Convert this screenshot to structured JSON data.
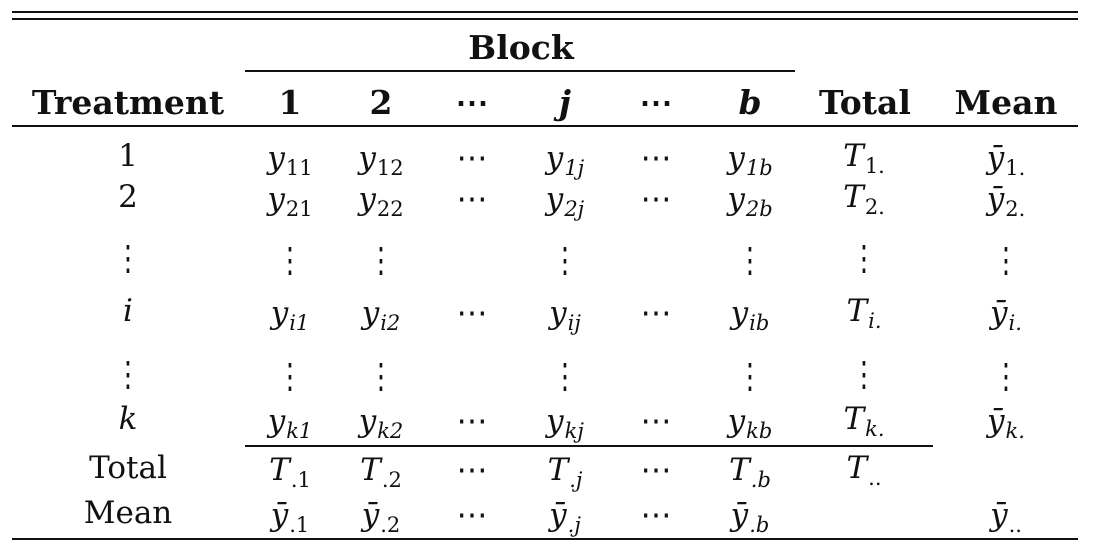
{
  "header": {
    "block_label": "Block",
    "treatment_label": "Treatment",
    "block_cols": [
      "1",
      "2",
      "⋯",
      "j",
      "⋯",
      "b"
    ],
    "total_label": "Total",
    "mean_label": "Mean"
  },
  "rows": [
    {
      "treatment": "1",
      "cells": [
        {
          "v": "y",
          "s": "11"
        },
        {
          "v": "y",
          "s": "12"
        },
        {
          "v": "⋯",
          "s": ""
        },
        {
          "v": "y",
          "s": "1j"
        },
        {
          "v": "⋯",
          "s": ""
        },
        {
          "v": "y",
          "s": "1b"
        }
      ],
      "total": {
        "v": "T",
        "s": "1."
      },
      "mean": {
        "v": "ȳ",
        "s": "1."
      }
    },
    {
      "treatment": "2",
      "cells": [
        {
          "v": "y",
          "s": "21"
        },
        {
          "v": "y",
          "s": "22"
        },
        {
          "v": "⋯",
          "s": ""
        },
        {
          "v": "y",
          "s": "2j"
        },
        {
          "v": "⋯",
          "s": ""
        },
        {
          "v": "y",
          "s": "2b"
        }
      ],
      "total": {
        "v": "T",
        "s": "2."
      },
      "mean": {
        "v": "ȳ",
        "s": "2."
      }
    },
    {
      "treatment": "⋮",
      "cells": [
        {
          "v": "⋮",
          "s": ""
        },
        {
          "v": "⋮",
          "s": ""
        },
        {
          "v": "",
          "s": ""
        },
        {
          "v": "⋮",
          "s": ""
        },
        {
          "v": "",
          "s": ""
        },
        {
          "v": "⋮",
          "s": ""
        }
      ],
      "total": {
        "v": "⋮",
        "s": ""
      },
      "mean": {
        "v": "⋮",
        "s": ""
      }
    },
    {
      "treatment": "i",
      "cells": [
        {
          "v": "y",
          "s": "i1"
        },
        {
          "v": "y",
          "s": "i2"
        },
        {
          "v": "⋯",
          "s": ""
        },
        {
          "v": "y",
          "s": "ij"
        },
        {
          "v": "⋯",
          "s": ""
        },
        {
          "v": "y",
          "s": "ib"
        }
      ],
      "total": {
        "v": "T",
        "s": "i."
      },
      "mean": {
        "v": "ȳ",
        "s": "i."
      }
    },
    {
      "treatment": "⋮",
      "cells": [
        {
          "v": "⋮",
          "s": ""
        },
        {
          "v": "⋮",
          "s": ""
        },
        {
          "v": "",
          "s": ""
        },
        {
          "v": "⋮",
          "s": ""
        },
        {
          "v": "",
          "s": ""
        },
        {
          "v": "⋮",
          "s": ""
        }
      ],
      "total": {
        "v": "⋮",
        "s": ""
      },
      "mean": {
        "v": "⋮",
        "s": ""
      }
    },
    {
      "treatment": "k",
      "cells": [
        {
          "v": "y",
          "s": "k1"
        },
        {
          "v": "y",
          "s": "k2"
        },
        {
          "v": "⋯",
          "s": ""
        },
        {
          "v": "y",
          "s": "kj"
        },
        {
          "v": "⋯",
          "s": ""
        },
        {
          "v": "y",
          "s": "kb"
        }
      ],
      "total": {
        "v": "T",
        "s": "k."
      },
      "mean": {
        "v": "ȳ",
        "s": "k."
      }
    },
    {
      "treatment": "Total",
      "cells": [
        {
          "v": "T",
          "s": ".1"
        },
        {
          "v": "T",
          "s": ".2"
        },
        {
          "v": "⋯",
          "s": ""
        },
        {
          "v": "T",
          "s": ".j"
        },
        {
          "v": "⋯",
          "s": ""
        },
        {
          "v": "T",
          "s": ".b"
        }
      ],
      "total": {
        "v": "T",
        "s": ".."
      },
      "mean": {
        "v": "",
        "s": ""
      }
    },
    {
      "treatment": "Mean",
      "cells": [
        {
          "v": "ȳ",
          "s": ".1"
        },
        {
          "v": "ȳ",
          "s": ".2"
        },
        {
          "v": "⋯",
          "s": ""
        },
        {
          "v": "ȳ",
          "s": ".j"
        },
        {
          "v": "⋯",
          "s": ""
        },
        {
          "v": "ȳ",
          "s": ".b"
        }
      ],
      "total": {
        "v": "",
        "s": ""
      },
      "mean": {
        "v": "ȳ",
        "s": ".."
      }
    }
  ]
}
